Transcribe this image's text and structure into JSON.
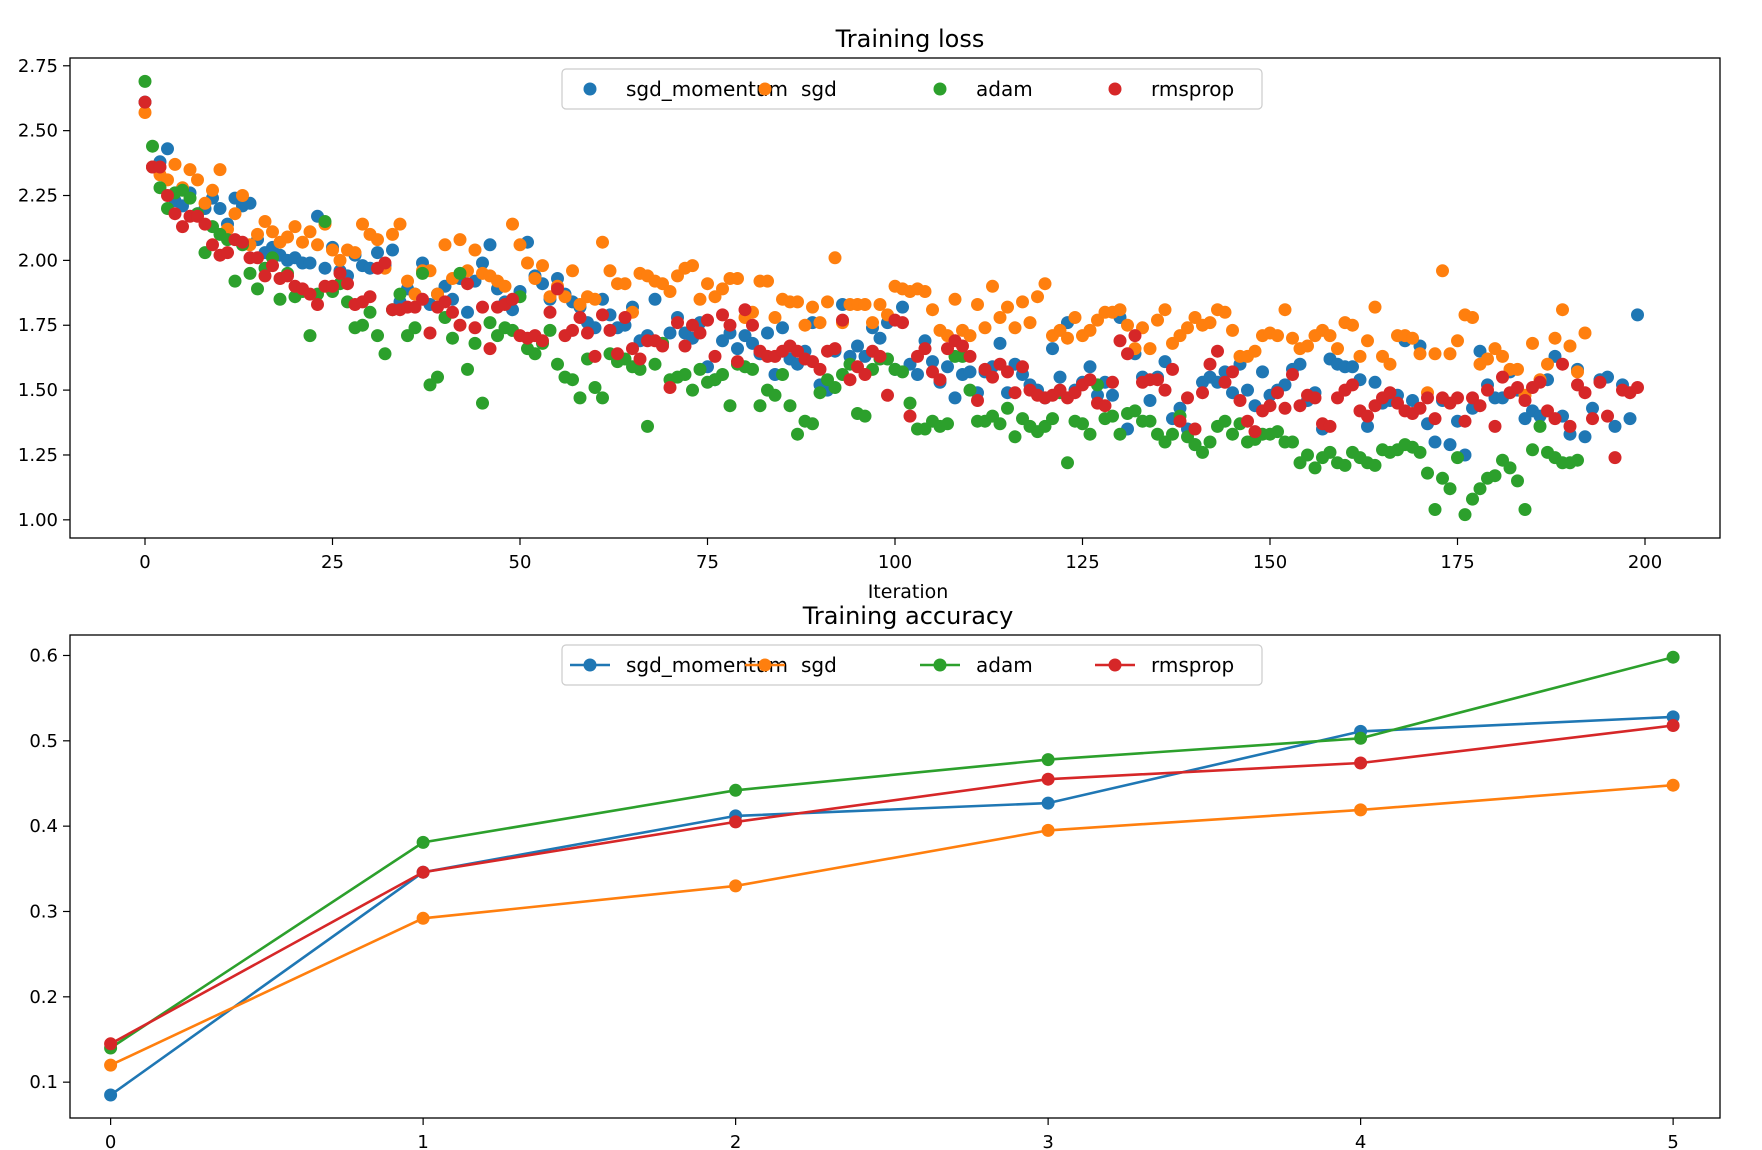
{
  "colors": {
    "sgd_momentum": "#1f77b4",
    "sgd": "#ff7f0e",
    "adam": "#2ca02c",
    "rmsprop": "#d62728"
  },
  "chart_data": [
    {
      "type": "scatter",
      "title": "Training loss",
      "xlabel": "Iteration",
      "ylabel": "",
      "xlim": [
        -10,
        210
      ],
      "ylim": [
        0.93,
        2.78
      ],
      "xticks": [
        0,
        25,
        50,
        75,
        100,
        125,
        150,
        175,
        200
      ],
      "yticks": [
        1.0,
        1.25,
        1.5,
        1.75,
        2.0,
        2.25,
        2.5,
        2.75
      ],
      "xtick_labels": [
        "0",
        "25",
        "50",
        "75",
        "100",
        "125",
        "150",
        "175",
        "200"
      ],
      "ytick_labels": [
        "1.00",
        "1.25",
        "1.50",
        "1.75",
        "2.00",
        "2.25",
        "2.50",
        "2.75"
      ],
      "grid": false,
      "legend_position": "top-center",
      "legend": [
        "sgd_momentum",
        "sgd",
        "adam",
        "rmsprop"
      ],
      "x": [
        0,
        1,
        2,
        3,
        4,
        5,
        6,
        7,
        8,
        9,
        10,
        11,
        12,
        13,
        14,
        15,
        16,
        17,
        18,
        19,
        20,
        21,
        22,
        23,
        24,
        25,
        26,
        27,
        28,
        29,
        30,
        31,
        32,
        33,
        34,
        35,
        36,
        37,
        38,
        39,
        40,
        41,
        42,
        43,
        44,
        45,
        46,
        47,
        48,
        49,
        50,
        51,
        52,
        53,
        54,
        55,
        56,
        57,
        58,
        59,
        60,
        61,
        62,
        63,
        64,
        65,
        66,
        67,
        68,
        69,
        70,
        71,
        72,
        73,
        74,
        75,
        76,
        77,
        78,
        79,
        80,
        81,
        82,
        83,
        84,
        85,
        86,
        87,
        88,
        89,
        90,
        91,
        92,
        93,
        94,
        95,
        96,
        97,
        98,
        99,
        100,
        101,
        102,
        103,
        104,
        105,
        106,
        107,
        108,
        109,
        110,
        111,
        112,
        113,
        114,
        115,
        116,
        117,
        118,
        119,
        120,
        121,
        122,
        123,
        124,
        125,
        126,
        127,
        128,
        129,
        130,
        131,
        132,
        133,
        134,
        135,
        136,
        137,
        138,
        139,
        140,
        141,
        142,
        143,
        144,
        145,
        146,
        147,
        148,
        149,
        150,
        151,
        152,
        153,
        154,
        155,
        156,
        157,
        158,
        159,
        160,
        161,
        162,
        163,
        164,
        165,
        166,
        167,
        168,
        169,
        170,
        171,
        172,
        173,
        174,
        175,
        176,
        177,
        178,
        179,
        180,
        181,
        182,
        183,
        184,
        185,
        186,
        187,
        188,
        189,
        190,
        191,
        192,
        193,
        194,
        195,
        196,
        197,
        198,
        199
      ],
      "series": [
        {
          "name": "sgd_momentum",
          "values": [
            2.61,
            2.36,
            2.38,
            2.43,
            2.23,
            2.21,
            2.26,
            2.18,
            2.2,
            2.24,
            2.2,
            2.14,
            2.24,
            2.21,
            2.22,
            2.08,
            2.03,
            2.05,
            2.02,
            2.0,
            2.01,
            1.99,
            1.99,
            2.17,
            1.97,
            2.05,
            1.96,
            1.94,
            2.02,
            1.98,
            1.97,
            2.03,
            1.98,
            2.04,
            1.84,
            1.89,
            1.87,
            1.99,
            1.83,
            1.87,
            1.9,
            1.85,
            1.93,
            1.8,
            1.92,
            1.99,
            2.06,
            1.89,
            1.84,
            1.81,
            1.88,
            2.07,
            1.94,
            1.91,
            1.85,
            1.93,
            1.87,
            1.84,
            1.82,
            1.76,
            1.74,
            1.85,
            1.79,
            1.74,
            1.75,
            1.82,
            1.69,
            1.71,
            1.85,
            1.68,
            1.72,
            1.78,
            1.72,
            1.7,
            1.76,
            1.59,
            1.54,
            1.69,
            1.72,
            1.66,
            1.71,
            1.68,
            1.64,
            1.72,
            1.56,
            1.74,
            1.62,
            1.6,
            1.65,
            1.76,
            1.52,
            1.5,
            1.65,
            1.83,
            1.63,
            1.67,
            1.63,
            1.74,
            1.7,
            1.76,
            1.58,
            1.82,
            1.6,
            1.56,
            1.69,
            1.61,
            1.53,
            1.59,
            1.47,
            1.56,
            1.57,
            1.49,
            1.57,
            1.59,
            1.68,
            1.49,
            1.6,
            1.56,
            1.52,
            1.5,
            1.47,
            1.66,
            1.55,
            1.76,
            1.5,
            1.53,
            1.59,
            1.48,
            1.53,
            1.48,
            1.78,
            1.35,
            1.64,
            1.55,
            1.46,
            1.55,
            1.61,
            1.39,
            1.43,
            1.35,
            1.29,
            1.53,
            1.55,
            1.53,
            1.57,
            1.49,
            1.6,
            1.5,
            1.44,
            1.57,
            1.48,
            1.5,
            1.52,
            1.58,
            1.6,
            1.46,
            1.49,
            1.35,
            1.62,
            1.6,
            1.59,
            1.59,
            1.54,
            1.36,
            1.53,
            1.45,
            1.46,
            1.48,
            1.69,
            1.46,
            1.67,
            1.37,
            1.3,
            1.46,
            1.29,
            1.38,
            1.25,
            1.43,
            1.65,
            1.52,
            1.47,
            1.47,
            1.57,
            1.5,
            1.39,
            1.42,
            1.4,
            1.54,
            1.63,
            1.4,
            1.33,
            1.58,
            1.32,
            1.43,
            1.54,
            1.55,
            1.36,
            1.52,
            1.39,
            1.79
          ]
        },
        {
          "name": "sgd",
          "values": [
            2.57,
            2.36,
            2.33,
            2.31,
            2.37,
            2.28,
            2.35,
            2.31,
            2.22,
            2.27,
            2.35,
            2.12,
            2.18,
            2.25,
            2.06,
            2.1,
            2.15,
            2.11,
            2.07,
            2.09,
            2.13,
            2.07,
            2.11,
            2.06,
            2.14,
            2.04,
            2.0,
            2.04,
            2.03,
            2.14,
            2.1,
            2.08,
            1.97,
            2.1,
            2.14,
            1.92,
            1.87,
            1.96,
            1.96,
            1.87,
            2.06,
            1.93,
            2.08,
            1.96,
            2.04,
            1.95,
            1.94,
            1.92,
            1.9,
            2.14,
            2.06,
            1.99,
            1.93,
            1.98,
            1.86,
            1.9,
            1.86,
            1.96,
            1.83,
            1.86,
            1.85,
            2.07,
            1.96,
            1.91,
            1.91,
            1.8,
            1.95,
            1.94,
            1.92,
            1.91,
            1.88,
            1.94,
            1.97,
            1.98,
            1.85,
            1.91,
            1.86,
            1.89,
            1.93,
            1.93,
            1.78,
            1.8,
            1.92,
            1.92,
            1.78,
            1.85,
            1.84,
            1.84,
            1.75,
            1.82,
            1.76,
            1.84,
            2.01,
            1.76,
            1.83,
            1.83,
            1.83,
            1.76,
            1.83,
            1.79,
            1.9,
            1.89,
            1.88,
            1.89,
            1.88,
            1.81,
            1.73,
            1.71,
            1.85,
            1.73,
            1.71,
            1.83,
            1.74,
            1.9,
            1.78,
            1.82,
            1.74,
            1.84,
            1.76,
            1.86,
            1.91,
            1.71,
            1.73,
            1.7,
            1.78,
            1.71,
            1.73,
            1.77,
            1.8,
            1.8,
            1.81,
            1.75,
            1.66,
            1.74,
            1.66,
            1.77,
            1.81,
            1.68,
            1.71,
            1.74,
            1.78,
            1.75,
            1.76,
            1.81,
            1.8,
            1.73,
            1.63,
            1.63,
            1.65,
            1.71,
            1.72,
            1.71,
            1.81,
            1.7,
            1.66,
            1.67,
            1.71,
            1.73,
            1.71,
            1.66,
            1.76,
            1.75,
            1.63,
            1.69,
            1.82,
            1.63,
            1.6,
            1.71,
            1.71,
            1.7,
            1.64,
            1.49,
            1.64,
            1.96,
            1.64,
            1.69,
            1.79,
            1.78,
            1.6,
            1.62,
            1.66,
            1.63,
            1.58,
            1.58,
            1.48,
            1.68,
            1.54,
            1.6,
            1.7,
            1.81,
            1.67,
            1.57,
            1.72
          ]
        },
        {
          "name": "adam",
          "values": [
            2.69,
            2.44,
            2.28,
            2.2,
            2.26,
            2.27,
            2.24,
            2.18,
            2.03,
            2.13,
            2.1,
            2.08,
            1.92,
            2.06,
            1.95,
            1.89,
            1.97,
            2.01,
            1.85,
            1.95,
            1.86,
            1.88,
            1.71,
            1.87,
            2.15,
            1.88,
            1.91,
            1.84,
            1.74,
            1.75,
            1.8,
            1.71,
            1.64,
            1.81,
            1.87,
            1.71,
            1.74,
            1.95,
            1.52,
            1.55,
            1.78,
            1.7,
            1.95,
            1.58,
            1.68,
            1.45,
            1.76,
            1.71,
            1.74,
            1.73,
            1.86,
            1.66,
            1.64,
            1.68,
            1.73,
            1.6,
            1.55,
            1.54,
            1.47,
            1.62,
            1.51,
            1.47,
            1.64,
            1.61,
            1.62,
            1.59,
            1.58,
            1.36,
            1.6,
            1.68,
            1.54,
            1.55,
            1.56,
            1.5,
            1.58,
            1.53,
            1.54,
            1.56,
            1.44,
            1.6,
            1.59,
            1.58,
            1.44,
            1.5,
            1.48,
            1.56,
            1.44,
            1.33,
            1.38,
            1.37,
            1.49,
            1.54,
            1.51,
            1.56,
            1.6,
            1.41,
            1.4,
            1.58,
            1.62,
            1.62,
            1.58,
            1.57,
            1.45,
            1.35,
            1.35,
            1.38,
            1.36,
            1.37,
            1.63,
            1.63,
            1.5,
            1.38,
            1.38,
            1.4,
            1.37,
            1.43,
            1.32,
            1.39,
            1.36,
            1.34,
            1.36,
            1.39,
            1.49,
            1.22,
            1.38,
            1.37,
            1.33,
            1.52,
            1.39,
            1.4,
            1.33,
            1.41,
            1.42,
            1.38,
            1.38,
            1.33,
            1.3,
            1.33,
            1.4,
            1.32,
            1.29,
            1.26,
            1.3,
            1.36,
            1.38,
            1.33,
            1.37,
            1.3,
            1.31,
            1.33,
            1.33,
            1.34,
            1.3,
            1.3,
            1.22,
            1.25,
            1.2,
            1.24,
            1.26,
            1.22,
            1.21,
            1.26,
            1.24,
            1.22,
            1.21,
            1.27,
            1.26,
            1.27,
            1.29,
            1.28,
            1.26,
            1.18,
            1.04,
            1.16,
            1.12,
            1.24,
            1.02,
            1.08,
            1.12,
            1.16,
            1.17,
            1.23,
            1.2,
            1.15,
            1.04,
            1.27,
            1.36,
            1.26,
            1.24,
            1.22,
            1.22,
            1.23
          ]
        },
        {
          "name": "rmsprop",
          "values": [
            2.61,
            2.36,
            2.36,
            2.25,
            2.18,
            2.13,
            2.17,
            2.17,
            2.14,
            2.06,
            2.02,
            2.03,
            2.08,
            2.07,
            2.01,
            2.01,
            1.94,
            1.98,
            1.93,
            1.94,
            1.9,
            1.89,
            1.87,
            1.83,
            1.9,
            1.9,
            1.95,
            1.91,
            1.83,
            1.84,
            1.86,
            1.97,
            1.99,
            1.81,
            1.81,
            1.82,
            1.82,
            1.85,
            1.72,
            1.82,
            1.84,
            1.8,
            1.75,
            1.91,
            1.74,
            1.82,
            1.66,
            1.82,
            1.83,
            1.85,
            1.71,
            1.7,
            1.71,
            1.69,
            1.8,
            1.89,
            1.71,
            1.73,
            1.78,
            1.72,
            1.63,
            1.79,
            1.73,
            1.64,
            1.78,
            1.66,
            1.62,
            1.69,
            1.69,
            1.67,
            1.51,
            1.76,
            1.67,
            1.75,
            1.72,
            1.77,
            1.63,
            1.79,
            1.75,
            1.61,
            1.81,
            1.75,
            1.65,
            1.63,
            1.63,
            1.65,
            1.67,
            1.65,
            1.62,
            1.61,
            1.58,
            1.65,
            1.66,
            1.77,
            1.54,
            1.59,
            1.56,
            1.65,
            1.63,
            1.48,
            1.77,
            1.76,
            1.4,
            1.63,
            1.66,
            1.57,
            1.54,
            1.66,
            1.69,
            1.67,
            1.63,
            1.46,
            1.58,
            1.55,
            1.6,
            1.57,
            1.49,
            1.59,
            1.5,
            1.48,
            1.47,
            1.48,
            1.5,
            1.47,
            1.49,
            1.52,
            1.54,
            1.45,
            1.44,
            1.53,
            1.69,
            1.64,
            1.71,
            1.53,
            1.54,
            1.54,
            1.5,
            1.58,
            1.38,
            1.47,
            1.35,
            1.49,
            1.6,
            1.65,
            1.53,
            1.57,
            1.46,
            1.38,
            1.34,
            1.42,
            1.44,
            1.49,
            1.43,
            1.56,
            1.44,
            1.48,
            1.47,
            1.37,
            1.36,
            1.47,
            1.5,
            1.52,
            1.42,
            1.4,
            1.44,
            1.47,
            1.49,
            1.45,
            1.42,
            1.41,
            1.43,
            1.47,
            1.39,
            1.47,
            1.45,
            1.47,
            1.38,
            1.47,
            1.44,
            1.5,
            1.36,
            1.55,
            1.49,
            1.51,
            1.46,
            1.51,
            1.53,
            1.42,
            1.39,
            1.6,
            1.36,
            1.52,
            1.49,
            1.39,
            1.53,
            1.4,
            1.24,
            1.5,
            1.49,
            1.51
          ]
        }
      ]
    },
    {
      "type": "line",
      "title": "Training accuracy",
      "xlabel": "",
      "ylabel": "",
      "xlim": [
        -0.13,
        5.15
      ],
      "ylim": [
        0.058,
        0.624
      ],
      "xticks": [
        0,
        1,
        2,
        3,
        4,
        5
      ],
      "yticks": [
        0.1,
        0.2,
        0.3,
        0.4,
        0.5,
        0.6
      ],
      "xtick_labels": [
        "0",
        "1",
        "2",
        "3",
        "4",
        "5"
      ],
      "ytick_labels": [
        "0.1",
        "0.2",
        "0.3",
        "0.4",
        "0.5",
        "0.6"
      ],
      "grid": false,
      "legend_position": "top-center",
      "legend": [
        "sgd_momentum",
        "sgd",
        "adam",
        "rmsprop"
      ],
      "x": [
        0,
        1,
        2,
        3,
        4,
        5
      ],
      "series": [
        {
          "name": "sgd_momentum",
          "values": [
            0.085,
            0.346,
            0.412,
            0.427,
            0.511,
            0.528
          ]
        },
        {
          "name": "sgd",
          "values": [
            0.12,
            0.292,
            0.33,
            0.395,
            0.419,
            0.448
          ]
        },
        {
          "name": "adam",
          "values": [
            0.14,
            0.381,
            0.442,
            0.478,
            0.503,
            0.598
          ]
        },
        {
          "name": "rmsprop",
          "values": [
            0.145,
            0.346,
            0.405,
            0.455,
            0.474,
            0.518
          ]
        }
      ]
    }
  ]
}
